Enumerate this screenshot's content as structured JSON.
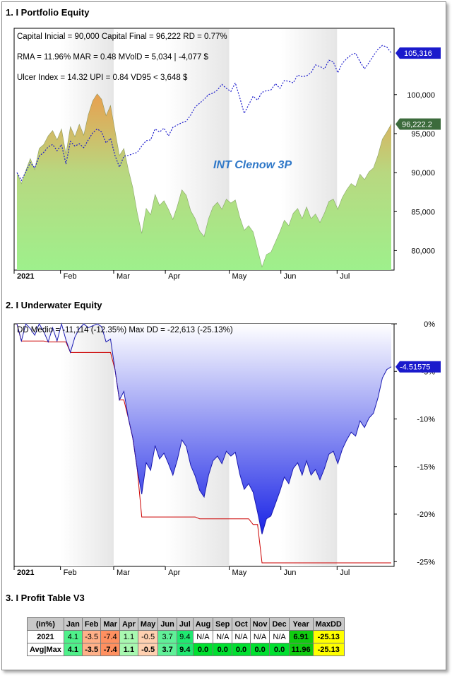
{
  "sections": {
    "equity_title": "1. I Portfolio Equity",
    "underwater_title": "2. I Underwater Equity",
    "profit_title": "3. I Profit Table V3"
  },
  "equity": {
    "stats": [
      "Capital Inicial = 90,000  Capital Final = 96,222   RD = 0.77%",
      "RMA = 11.96%   MAR = 0.48   MVolD = 5,034 | -4,077 $",
      "Ulcer Index = 14.32   UPI = 0.84   VD95 < 3,648 $"
    ],
    "watermark": "INT Clenow 3P",
    "last_equity_label": "96,222.2",
    "last_benchmark_label": "105,316",
    "colors": {
      "equity_top": "#e8a050",
      "equity_bottom": "#9ef08c",
      "benchmark": "#1a1acc",
      "equity_badge": "#3c6b3c",
      "bench_badge": "#1a1acc"
    }
  },
  "underwater": {
    "stats": "DD Medio = -11,114 (-12.35%)          Max DD = -22,613 (-25.13%)",
    "last_label": "-4.51575",
    "colors": {
      "fill_top": "#ffffff",
      "fill_bottom": "#1a24e6",
      "line": "#1a1ab0",
      "maxdd_line": "#cc0000"
    }
  },
  "chart_data": [
    {
      "type": "area",
      "title": "1. I Portfolio Equity",
      "x_tick_labels": [
        "2021",
        "Feb",
        "Mar",
        "Apr",
        "May",
        "Jun",
        "Jul"
      ],
      "ylim": [
        77500,
        108500
      ],
      "y_ticks": [
        80000,
        85000,
        90000,
        95000,
        100000
      ],
      "y_tick_labels": [
        "80,000",
        "85,000",
        "90,000",
        "95,000",
        "100,000"
      ],
      "series": [
        {
          "type": "area",
          "values": [
            90000,
            88600,
            90300,
            91800,
            90400,
            93100,
            93600,
            94700,
            95400,
            94200,
            95600,
            92400,
            95900,
            94600,
            96200,
            94800,
            97400,
            99200,
            100100,
            99400,
            97300,
            98600,
            95400,
            92200,
            93100,
            90400,
            88100,
            84800,
            82200,
            85400,
            84600,
            87200,
            85800,
            86400,
            85300,
            84000,
            85700,
            87800,
            87100,
            85100,
            84100,
            82500,
            81800,
            84100,
            85600,
            86200,
            85300,
            86600,
            86100,
            86500,
            84300,
            82600,
            83200,
            82400,
            80200,
            77900,
            79500,
            79800,
            81100,
            82400,
            83900,
            83200,
            84800,
            85400,
            84100,
            85600,
            84100,
            84700,
            83600,
            84800,
            86300,
            86600,
            85300,
            86800,
            87800,
            88600,
            88200,
            89800,
            89100,
            90100,
            90600,
            92200,
            94300,
            95200,
            96222
          ]
        },
        {
          "type": "line",
          "values": [
            90000,
            89000,
            90100,
            91300,
            90600,
            92100,
            92600,
            93300,
            93600,
            92800,
            93600,
            91100,
            94000,
            93400,
            93700,
            93200,
            94200,
            95100,
            95600,
            95200,
            93800,
            94400,
            92200,
            90700,
            92100,
            92200,
            92400,
            92600,
            93400,
            94100,
            94200,
            95600,
            95200,
            95700,
            94700,
            95800,
            96100,
            96400,
            96600,
            97400,
            98400,
            98900,
            99400,
            100000,
            100200,
            100600,
            101300,
            100800,
            100400,
            101500,
            99600,
            97600,
            98700,
            99800,
            99300,
            100300,
            100500,
            100600,
            101400,
            100800,
            101800,
            101700,
            101500,
            102500,
            102300,
            102400,
            102800,
            103800,
            103600,
            103300,
            104400,
            104200,
            102800,
            104000,
            104600,
            105100,
            105300,
            104200,
            103300,
            104100,
            105000,
            105800,
            106300,
            106100,
            105316
          ]
        }
      ]
    },
    {
      "type": "area",
      "title": "2. I Underwater Equity",
      "x_tick_labels": [
        "2021",
        "Feb",
        "Mar",
        "Apr",
        "May",
        "Jun",
        "Jul"
      ],
      "ylim": [
        -25.5,
        0
      ],
      "y_ticks": [
        0,
        -5,
        -10,
        -15,
        -20,
        -25
      ],
      "y_tick_labels": [
        "0%",
        "-5%",
        "-10%",
        "-15%",
        "-20%",
        "-25%"
      ],
      "series": [
        {
          "type": "area",
          "values": [
            0,
            -1.8,
            0,
            -0.5,
            -1.2,
            0,
            -0.8,
            -1.9,
            -0.4,
            -1.8,
            0,
            -1.7,
            -3.0,
            -1.4,
            -0.5,
            0,
            -0.4,
            -0.2,
            0,
            -0.3,
            -1.9,
            -1.6,
            -4.8,
            -8.0,
            -7.1,
            -9.9,
            -12.0,
            -15.3,
            -17.9,
            -14.6,
            -15.4,
            -12.8,
            -14.2,
            -13.6,
            -14.7,
            -15.9,
            -14.3,
            -12.2,
            -12.9,
            -14.9,
            -16.0,
            -17.5,
            -18.2,
            -15.9,
            -14.4,
            -13.9,
            -14.7,
            -13.4,
            -13.9,
            -13.5,
            -15.8,
            -17.4,
            -16.8,
            -17.7,
            -19.8,
            -22.1,
            -20.5,
            -20.2,
            -18.9,
            -17.6,
            -16.1,
            -16.8,
            -15.2,
            -14.6,
            -15.9,
            -14.4,
            -15.9,
            -15.3,
            -16.4,
            -15.2,
            -13.7,
            -13.4,
            -14.7,
            -13.2,
            -12.2,
            -11.4,
            -11.8,
            -10.2,
            -10.9,
            -9.9,
            -9.4,
            -7.8,
            -5.7,
            -4.8,
            -4.51575
          ]
        },
        {
          "type": "line",
          "name": "Max DD",
          "values": [
            0,
            -1.8,
            -1.8,
            -1.8,
            -1.8,
            -1.8,
            -1.8,
            -1.9,
            -1.9,
            -1.9,
            -1.9,
            -1.9,
            -3.0,
            -3.0,
            -3.0,
            -3.0,
            -3.0,
            -3.0,
            -3.0,
            -3.0,
            -3.0,
            -3.0,
            -4.8,
            -8.0,
            -8.0,
            -9.9,
            -12.0,
            -15.3,
            -20.3,
            -20.3,
            -20.3,
            -20.3,
            -20.3,
            -20.3,
            -20.3,
            -20.3,
            -20.3,
            -20.3,
            -20.3,
            -20.3,
            -20.3,
            -20.5,
            -20.5,
            -20.5,
            -20.5,
            -20.5,
            -20.5,
            -20.5,
            -20.5,
            -20.5,
            -20.5,
            -20.5,
            -20.5,
            -21.1,
            -21.1,
            -25.13,
            -25.13,
            -25.13,
            -25.13,
            -25.13,
            -25.13,
            -25.13,
            -25.13,
            -25.13,
            -25.13,
            -25.13,
            -25.13,
            -25.13,
            -25.13,
            -25.13,
            -25.13,
            -25.13,
            -25.13,
            -25.13,
            -25.13,
            -25.13,
            -25.13,
            -25.13,
            -25.13,
            -25.13,
            -25.13,
            -25.13,
            -25.13,
            -25.13,
            -25.13
          ]
        }
      ]
    },
    {
      "type": "table",
      "title": "3. I Profit Table V3",
      "columns": [
        "(in%)",
        "Jan",
        "Feb",
        "Mar",
        "Apr",
        "May",
        "Jun",
        "Jul",
        "Aug",
        "Sep",
        "Oct",
        "Nov",
        "Dec",
        "Year",
        "MaxDD"
      ],
      "rows": [
        {
          "label": "2021",
          "cells": [
            "4.1",
            "-3.5",
            "-7.4",
            "1.1",
            "-0.5",
            "3.7",
            "9.4",
            "N/A",
            "N/A",
            "N/A",
            "N/A",
            "N/A",
            "6.91",
            "-25.13"
          ],
          "colors": [
            "#4ff08a",
            "#ffb088",
            "#ff9060",
            "#a8f8b0",
            "#ffd0b0",
            "#60f098",
            "#20e870",
            "#ffffff",
            "#ffffff",
            "#ffffff",
            "#ffffff",
            "#ffffff",
            "#10cc10",
            "#ffff00"
          ]
        },
        {
          "label": "Avg|Max",
          "cells": [
            "4.1",
            "-3.5",
            "-7.4",
            "1.1",
            "-0.5",
            "3.7",
            "9.4",
            "0.0",
            "0.0",
            "0.0",
            "0.0",
            "0.0",
            "11.96",
            "-25.13"
          ],
          "colors": [
            "#4ff08a",
            "#ffb088",
            "#ff9060",
            "#a8f8b0",
            "#ffd0b0",
            "#60f098",
            "#20e870",
            "#00e030",
            "#00e030",
            "#00e030",
            "#00e030",
            "#00e030",
            "#10cc10",
            "#ffff00"
          ]
        }
      ]
    }
  ]
}
